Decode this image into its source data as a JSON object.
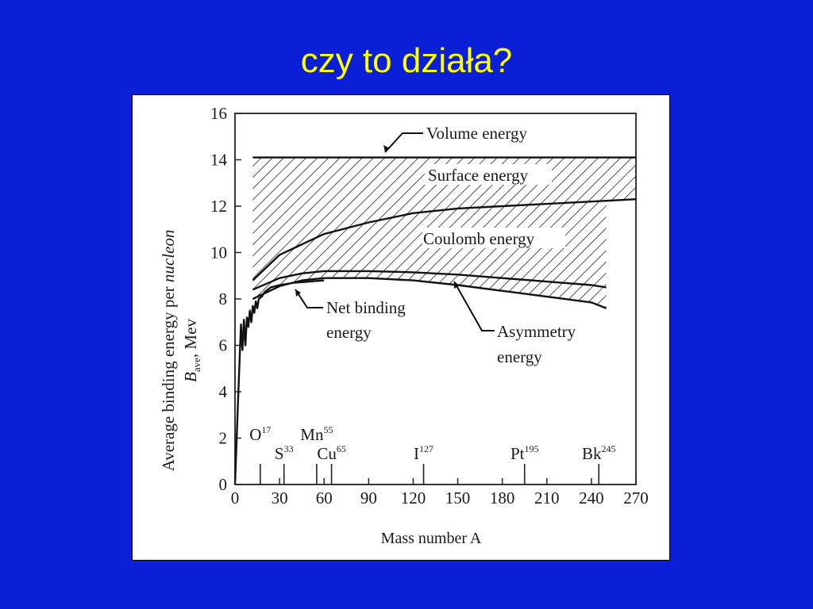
{
  "slide": {
    "title": "czy to działa?"
  },
  "chart_data": {
    "type": "area",
    "title": "",
    "xlabel": "Mass number A",
    "ylabel": "Average binding energy per nucleon B_ave, Mev",
    "ylabel_parts": {
      "line1": "Average binding energy per ",
      "line1_italic": "nucleon",
      "sym": "B",
      "sub": "ave",
      "rest": ", Mev"
    },
    "xlim": [
      0,
      270
    ],
    "ylim": [
      0,
      16
    ],
    "x_ticks": [
      0,
      30,
      60,
      90,
      120,
      150,
      180,
      210,
      240,
      270
    ],
    "y_ticks": [
      0,
      2,
      4,
      6,
      8,
      10,
      12,
      14,
      16
    ],
    "x_tick_labels": [
      "0",
      "30",
      "60",
      "90",
      "120",
      "150",
      "180",
      "210",
      "240",
      "270"
    ],
    "y_tick_labels": [
      "0",
      "2",
      "4",
      "6",
      "8",
      "10",
      "12",
      "14",
      "16"
    ],
    "series": [
      {
        "name": "Volume energy",
        "x": [
          12,
          270
        ],
        "y": [
          14.1,
          14.1
        ]
      },
      {
        "name": "Surface energy",
        "x": [
          12,
          30,
          60,
          90,
          120,
          150,
          180,
          210,
          240,
          270
        ],
        "y": [
          8.8,
          9.9,
          10.8,
          11.3,
          11.7,
          11.9,
          12.0,
          12.1,
          12.2,
          12.3
        ]
      },
      {
        "name": "Coulomb energy",
        "x": [
          12,
          30,
          45,
          60,
          90,
          120,
          150,
          180,
          210,
          240,
          250
        ],
        "y": [
          8.4,
          8.9,
          9.1,
          9.2,
          9.2,
          9.15,
          9.05,
          8.9,
          8.75,
          8.6,
          8.5
        ]
      },
      {
        "name": "Asymmetry energy",
        "x": [
          12,
          30,
          45,
          60,
          90,
          120,
          150,
          180,
          210,
          240,
          250
        ],
        "y": [
          8.0,
          8.55,
          8.8,
          8.9,
          8.9,
          8.8,
          8.6,
          8.35,
          8.1,
          7.85,
          7.6
        ]
      },
      {
        "name": "Net binding energy",
        "x": [
          0,
          2,
          4,
          5,
          6,
          7,
          8,
          9,
          10,
          11,
          12,
          13,
          14,
          15,
          16,
          18,
          20,
          24,
          30,
          40,
          50,
          60
        ],
        "y": [
          0,
          3.5,
          6.9,
          5.8,
          7.1,
          6.0,
          7.2,
          6.8,
          7.5,
          7.0,
          7.7,
          7.4,
          7.9,
          7.6,
          8.0,
          8.1,
          8.3,
          8.5,
          8.6,
          8.7,
          8.75,
          8.8
        ]
      }
    ],
    "annotations": {
      "volume": "Volume energy",
      "surface": "Surface energy",
      "coulomb": "Coulomb energy",
      "net_1": "Net binding",
      "net_2": "energy",
      "asym_1": "Asymmetry",
      "asym_2": "energy"
    },
    "isotope_markers": [
      {
        "sym": "O",
        "sup": "17",
        "a": 17
      },
      {
        "sym": "S",
        "sup": "33",
        "a": 33
      },
      {
        "sym": "Mn",
        "sup": "55",
        "a": 55
      },
      {
        "sym": "Cu",
        "sup": "65",
        "a": 65
      },
      {
        "sym": "I",
        "sup": "127",
        "a": 127
      },
      {
        "sym": "Pt",
        "sup": "195",
        "a": 195
      },
      {
        "sym": "Bk",
        "sup": "245",
        "a": 245
      }
    ],
    "grid": false,
    "legend": "none"
  }
}
